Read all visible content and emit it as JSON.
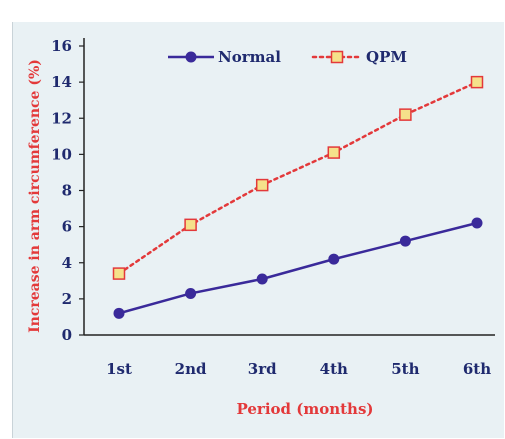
{
  "chart_data": {
    "type": "line",
    "categories": [
      "1st",
      "2nd",
      "3rd",
      "4th",
      "5th",
      "6th"
    ],
    "series": [
      {
        "name": "Normal",
        "values": [
          1.2,
          2.3,
          3.1,
          4.2,
          5.2,
          6.2
        ],
        "color": "#3a2a9a",
        "style": "solid",
        "marker": "circle"
      },
      {
        "name": "QPM",
        "values": [
          3.4,
          6.1,
          8.3,
          10.1,
          12.2,
          14.0
        ],
        "color": "#e3393a",
        "style": "dotted",
        "marker": "square",
        "marker_fill": "#f5e18a",
        "marker_edge": "#e3393a"
      }
    ],
    "xlabel": "Period (months)",
    "ylabel": "Increase in arm circumference (%)",
    "ylim": [
      0,
      16
    ],
    "yticks": [
      0,
      2,
      4,
      6,
      8,
      10,
      12,
      14,
      16
    ],
    "grid": false,
    "legend_position": "top"
  },
  "colors": {
    "background": "#e9f1f4",
    "axis": "#222222",
    "tick_text": "#1f2a6e",
    "label_text": "#e3393a"
  }
}
